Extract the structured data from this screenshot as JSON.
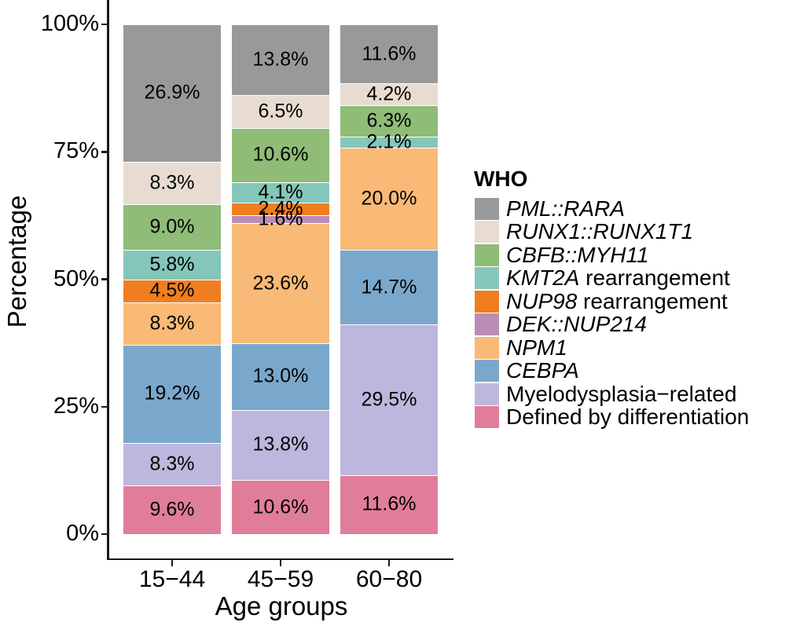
{
  "chart_data": {
    "type": "bar",
    "stacked": true,
    "percent": true,
    "title": "",
    "xlabel": "Age groups",
    "ylabel": "Percentage",
    "categories": [
      "15−44",
      "45−59",
      "60−80"
    ],
    "ylim": [
      0,
      100
    ],
    "grid": false,
    "y_ticks": [
      {
        "label": "0%",
        "value": 0
      },
      {
        "label": "25%",
        "value": 25
      },
      {
        "label": "50%",
        "value": 50
      },
      {
        "label": "75%",
        "value": 75
      },
      {
        "label": "100%",
        "value": 100
      }
    ],
    "legend_title": "WHO",
    "legend_position": "right",
    "series": [
      {
        "name": "PML::RARA",
        "color": "#999999",
        "values": [
          26.9,
          13.8,
          11.6
        ],
        "label_parts": [
          {
            "text": "PML::RARA",
            "italic": true
          }
        ]
      },
      {
        "name": "RUNX1::RUNX1T1",
        "color": "#E8DCD2",
        "values": [
          8.3,
          6.5,
          4.2
        ],
        "label_parts": [
          {
            "text": "RUNX1::RUNX1T1",
            "italic": true
          }
        ]
      },
      {
        "name": "CBFB::MYH11",
        "color": "#8FBC77",
        "values": [
          9.0,
          10.6,
          6.3
        ],
        "label_parts": [
          {
            "text": "CBFB::MYH11",
            "italic": true
          }
        ]
      },
      {
        "name": "KMT2A rearrangement",
        "color": "#85C6BA",
        "values": [
          5.8,
          4.1,
          2.1
        ],
        "label_parts": [
          {
            "text": "KMT2A",
            "italic": true
          },
          {
            "text": " rearrangement",
            "italic": false
          }
        ]
      },
      {
        "name": "NUP98 rearrangement",
        "color": "#F07E20",
        "values": [
          4.5,
          2.4,
          0
        ],
        "label_parts": [
          {
            "text": "NUP98",
            "italic": true
          },
          {
            "text": " rearrangement",
            "italic": false
          }
        ]
      },
      {
        "name": "DEK::NUP214",
        "color": "#BA8DB4",
        "values": [
          0,
          1.6,
          0
        ],
        "label_parts": [
          {
            "text": "DEK::NUP214",
            "italic": true
          }
        ]
      },
      {
        "name": "NPM1",
        "color": "#F8BA76",
        "values": [
          8.3,
          23.6,
          20.0
        ],
        "label_parts": [
          {
            "text": "NPM1",
            "italic": true
          }
        ]
      },
      {
        "name": "CEBPA",
        "color": "#7AA8CD",
        "values": [
          19.2,
          13.0,
          14.7
        ],
        "label_parts": [
          {
            "text": "CEBPA",
            "italic": true
          }
        ]
      },
      {
        "name": "Myelodysplasia−related",
        "color": "#BDB7DD",
        "values": [
          8.3,
          13.8,
          29.5
        ],
        "label_parts": [
          {
            "text": "Myelodysplasia−related",
            "italic": false
          }
        ]
      },
      {
        "name": "Defined by differentiation",
        "color": "#E07E99",
        "values": [
          9.6,
          10.6,
          11.6
        ],
        "label_parts": [
          {
            "text": "Defined by differentiation",
            "italic": false
          }
        ]
      }
    ],
    "bar_labels": [
      [
        "26.9%",
        "8.3%",
        "9.0%",
        "5.8%",
        "4.5%",
        null,
        "8.3%",
        "19.2%",
        "8.3%",
        "9.6%"
      ],
      [
        "13.8%",
        "6.5%",
        "10.6%",
        "4.1%",
        "2.4%",
        "1.6%",
        "23.6%",
        "13.0%",
        "13.8%",
        "10.6%"
      ],
      [
        "11.6%",
        "4.2%",
        "6.3%",
        "2.1%",
        null,
        null,
        "20.0%",
        "14.7%",
        "29.5%",
        "11.6%"
      ]
    ]
  }
}
